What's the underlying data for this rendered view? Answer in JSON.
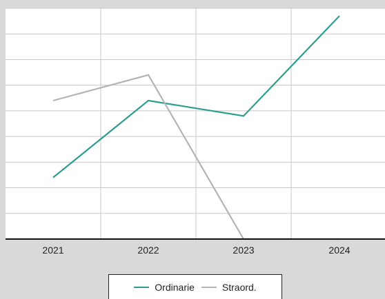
{
  "chart_data": {
    "type": "line",
    "categories": [
      "2021",
      "2022",
      "2023",
      "2024"
    ],
    "series": [
      {
        "name": "Ordinarie",
        "values": [
          2.4,
          5.4,
          4.8,
          8.7
        ],
        "color": "#2a9d8f"
      },
      {
        "name": "Straord.",
        "values": [
          5.4,
          6.4,
          0.0,
          0.0
        ],
        "color": "#b3b3b3"
      }
    ],
    "ylim": [
      0,
      9
    ],
    "grid": true,
    "legend_position": "bottom-center",
    "title": "",
    "xlabel": "",
    "ylabel": ""
  },
  "colors": {
    "background": "#d9d9d9",
    "plot_background": "#ffffff",
    "grid": "#c8c8c8",
    "axis": "#111111"
  }
}
